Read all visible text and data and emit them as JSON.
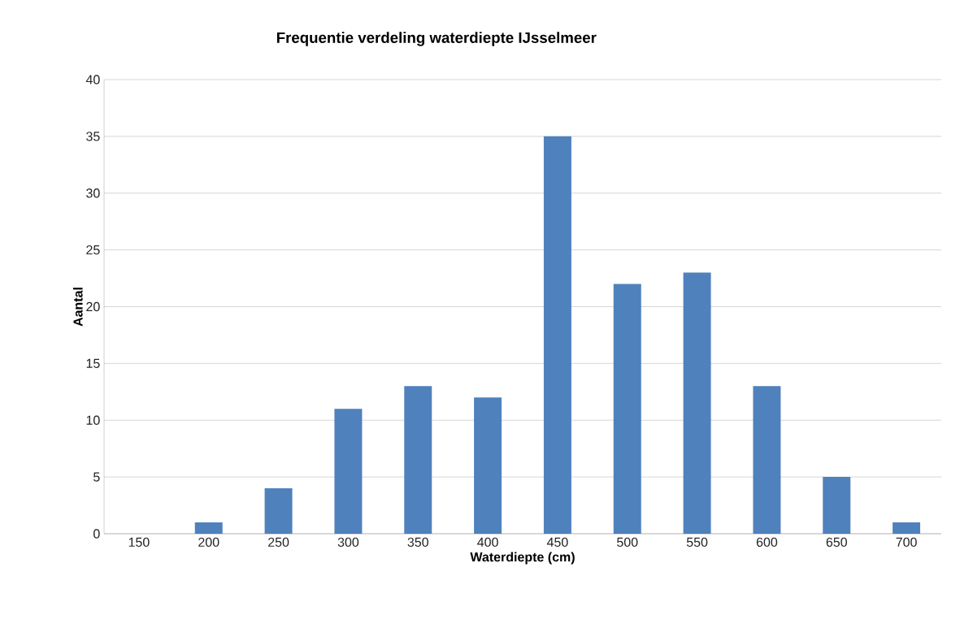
{
  "chart_data": {
    "type": "bar",
    "title": "Frequentie verdeling waterdiepte IJsselmeer",
    "xlabel": "Waterdiepte (cm)",
    "ylabel": "Aantal",
    "categories": [
      "150",
      "200",
      "250",
      "300",
      "350",
      "400",
      "450",
      "500",
      "550",
      "600",
      "650",
      "700"
    ],
    "values": [
      0,
      1,
      4,
      11,
      13,
      12,
      35,
      22,
      23,
      13,
      5,
      1
    ],
    "color": "#4f81bd",
    "ylim": [
      0,
      40
    ],
    "yticks": [
      0,
      5,
      10,
      15,
      20,
      25,
      30,
      35,
      40
    ],
    "grid": "y"
  }
}
